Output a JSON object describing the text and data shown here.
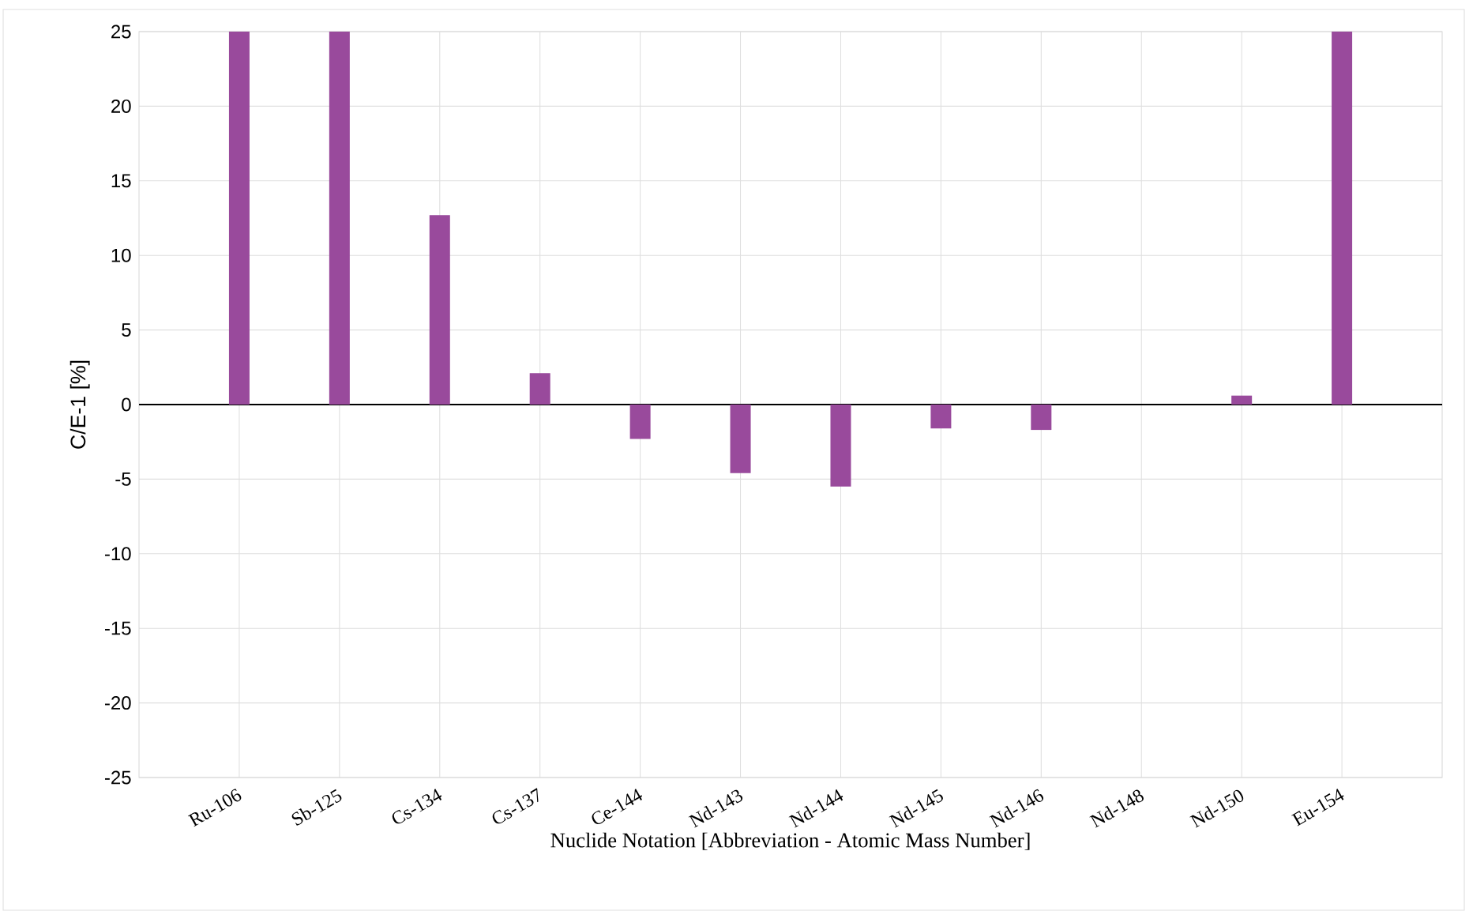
{
  "chart_data": {
    "type": "bar",
    "xlabel": "Nuclide Notation [Abbreviation - Atomic Mass Number]",
    "ylabel": "C/E-1 [%]",
    "categories": [
      "Ru-106",
      "Sb-125",
      "Cs-134",
      "Cs-137",
      "Ce-144",
      "Nd-143",
      "Nd-144",
      "Nd-145",
      "Nd-146",
      "Nd-148",
      "Nd-150",
      "Eu-154"
    ],
    "series": [
      {
        "color": "#994a9c",
        "values": [
          25,
          25,
          12.7,
          2.1,
          -2.3,
          -4.6,
          -5.5,
          -1.6,
          -1.7,
          0,
          0.6,
          25
        ]
      }
    ],
    "ylim": [
      -25,
      25
    ],
    "yticks": [
      -25,
      -20,
      -15,
      -10,
      -5,
      0,
      5,
      10,
      15,
      20,
      25
    ],
    "grid": true
  }
}
